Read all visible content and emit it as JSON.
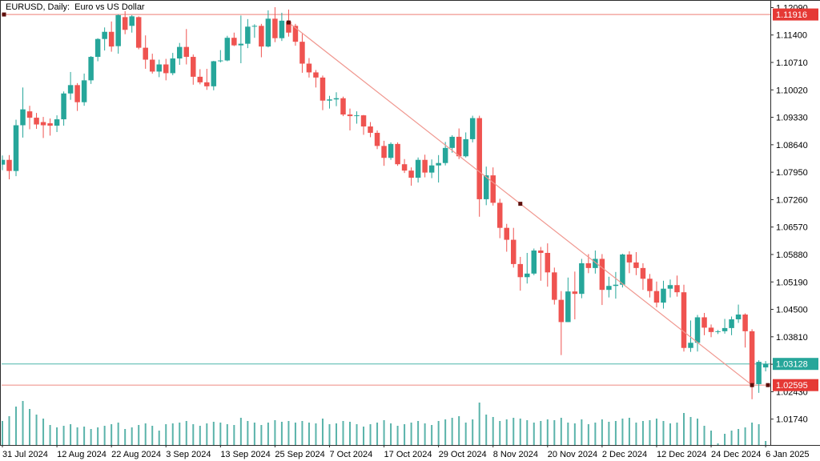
{
  "window": {
    "title": "EURUSD, Daily:  Euro vs US Dollar"
  },
  "colors": {
    "bull": "#26a69a",
    "bear": "#ef5350",
    "volume": "#5ab3aa",
    "object_line": "#f0978f",
    "object_marker": "#5d100c",
    "badge_red": "#e53935",
    "badge_teal": "#26a69a",
    "price_line_teal": "#4db6ac",
    "axis_line": "#2b2b2b",
    "axis_text": "#000000",
    "background": "#ffffff"
  },
  "chart_data": {
    "type": "candlestick",
    "title": "EURUSD, Daily:  Euro vs US Dollar",
    "symbol": "EURUSD",
    "timeframe": "Daily",
    "grid": false,
    "y_axis": {
      "side": "right",
      "visible_max": 1.1224,
      "visible_min": 1.01089,
      "tick_labels": [
        "1.12090",
        "1.11400",
        "1.10710",
        "1.10020",
        "1.09330",
        "1.08640",
        "1.07950",
        "1.07260",
        "1.06570",
        "1.05880",
        "1.05190",
        "1.04500",
        "1.03810",
        "1.03120",
        "1.02430",
        "1.01740"
      ]
    },
    "x_axis": {
      "side": "bottom",
      "tick_labels": [
        {
          "label": "31 Jul 2024",
          "bar": 0
        },
        {
          "label": "12 Aug 2024",
          "bar": 8
        },
        {
          "label": "22 Aug 2024",
          "bar": 16
        },
        {
          "label": "3 Sep 2024",
          "bar": 24
        },
        {
          "label": "13 Sep 2024",
          "bar": 32
        },
        {
          "label": "25 Sep 2024",
          "bar": 40
        },
        {
          "label": "7 Oct 2024",
          "bar": 48
        },
        {
          "label": "17 Oct 2024",
          "bar": 56
        },
        {
          "label": "29 Oct 2024",
          "bar": 64
        },
        {
          "label": "8 Nov 2024",
          "bar": 72
        },
        {
          "label": "20 Nov 2024",
          "bar": 80
        },
        {
          "label": "2 Dec 2024",
          "bar": 88
        },
        {
          "label": "12 Dec 2024",
          "bar": 96
        },
        {
          "label": "24 Dec 2024",
          "bar": 104
        },
        {
          "label": "6 Jan 2025",
          "bar": 112
        }
      ]
    },
    "candles_format": [
      "date",
      "open",
      "high",
      "low",
      "close",
      "volume"
    ],
    "candles": [
      [
        "31 Jul 2024",
        1.0814,
        1.0837,
        1.08,
        1.0826,
        30
      ],
      [
        "1 Aug 2024",
        1.0826,
        1.0838,
        1.0777,
        1.0798,
        36
      ],
      [
        "2 Aug 2024",
        1.0798,
        1.0927,
        1.0785,
        1.0913,
        48
      ],
      [
        "5 Aug 2024",
        1.0913,
        1.1008,
        1.0882,
        1.0953,
        55
      ],
      [
        "6 Aug 2024",
        1.0948,
        1.0962,
        1.0903,
        1.0932,
        45
      ],
      [
        "7 Aug 2024",
        1.0932,
        1.0944,
        1.0904,
        1.0915,
        38
      ],
      [
        "8 Aug 2024",
        1.0921,
        1.0934,
        1.0881,
        1.0913,
        33
      ],
      [
        "9 Aug 2024",
        1.0918,
        1.093,
        1.0887,
        1.0912,
        25
      ],
      [
        "12 Aug 2024",
        1.0912,
        1.0938,
        1.0896,
        1.0928,
        22
      ],
      [
        "13 Aug 2024",
        1.0928,
        1.0998,
        1.0912,
        1.0993,
        24
      ],
      [
        "14 Aug 2024",
        1.0993,
        1.1047,
        1.0977,
        1.1014,
        26
      ],
      [
        "15 Aug 2024",
        1.1014,
        1.1019,
        1.0949,
        1.0971,
        22
      ],
      [
        "16 Aug 2024",
        1.0971,
        1.1043,
        1.0962,
        1.1026,
        23
      ],
      [
        "19 Aug 2024",
        1.1026,
        1.1087,
        1.1017,
        1.1085,
        20
      ],
      [
        "20 Aug 2024",
        1.1085,
        1.1132,
        1.1074,
        1.113,
        22
      ],
      [
        "21 Aug 2024",
        1.113,
        1.1159,
        1.1101,
        1.1148,
        24
      ],
      [
        "22 Aug 2024",
        1.1148,
        1.1174,
        1.1098,
        1.1111,
        26
      ],
      [
        "23 Aug 2024",
        1.1112,
        1.1192,
        1.1093,
        1.119,
        28
      ],
      [
        "26 Aug 2024",
        1.1185,
        1.12,
        1.1142,
        1.1153,
        20
      ],
      [
        "27 Aug 2024",
        1.1163,
        1.119,
        1.1146,
        1.1187,
        22
      ],
      [
        "28 Aug 2024",
        1.1185,
        1.1187,
        1.1104,
        1.1108,
        25
      ],
      [
        "29 Aug 2024",
        1.1108,
        1.1139,
        1.1055,
        1.1078,
        27
      ],
      [
        "30 Aug 2024",
        1.1078,
        1.1093,
        1.1043,
        1.1048,
        24
      ],
      [
        "2 Sep 2024",
        1.1048,
        1.1078,
        1.1034,
        1.1066,
        18
      ],
      [
        "3 Sep 2024",
        1.1066,
        1.108,
        1.1026,
        1.1044,
        26
      ],
      [
        "4 Sep 2024",
        1.1044,
        1.1095,
        1.1039,
        1.1081,
        27
      ],
      [
        "5 Sep 2024",
        1.1081,
        1.112,
        1.1065,
        1.111,
        28
      ],
      [
        "6 Sep 2024",
        1.111,
        1.1155,
        1.1066,
        1.1085,
        30
      ],
      [
        "9 Sep 2024",
        1.1085,
        1.1091,
        1.1015,
        1.1035,
        26
      ],
      [
        "10 Sep 2024",
        1.1035,
        1.1054,
        1.1016,
        1.1021,
        24
      ],
      [
        "11 Sep 2024",
        1.1021,
        1.1055,
        1.1002,
        1.1011,
        27
      ],
      [
        "12 Sep 2024",
        1.1011,
        1.1075,
        1.1001,
        1.1074,
        29
      ],
      [
        "13 Sep 2024",
        1.1074,
        1.1102,
        1.1071,
        1.1076,
        28
      ],
      [
        "16 Sep 2024",
        1.1076,
        1.1138,
        1.1074,
        1.1133,
        26
      ],
      [
        "17 Sep 2024",
        1.1133,
        1.1146,
        1.1112,
        1.1114,
        25
      ],
      [
        "18 Sep 2024",
        1.1114,
        1.1189,
        1.1069,
        1.1118,
        34
      ],
      [
        "19 Sep 2024",
        1.1118,
        1.118,
        1.1107,
        1.1161,
        30
      ],
      [
        "20 Sep 2024",
        1.1161,
        1.1167,
        1.1133,
        1.1163,
        28
      ],
      [
        "23 Sep 2024",
        1.1163,
        1.1168,
        1.1084,
        1.1111,
        25
      ],
      [
        "24 Sep 2024",
        1.1111,
        1.1202,
        1.1109,
        1.1181,
        28
      ],
      [
        "25 Sep 2024",
        1.1181,
        1.121,
        1.1122,
        1.1132,
        31
      ],
      [
        "26 Sep 2024",
        1.1132,
        1.1196,
        1.1125,
        1.1176,
        29
      ],
      [
        "27 Sep 2024",
        1.1174,
        1.1204,
        1.1136,
        1.1146,
        30
      ],
      [
        "30 Sep 2024",
        1.1163,
        1.1168,
        1.1113,
        1.1123,
        28
      ],
      [
        "1 Oct 2024",
        1.1123,
        1.1143,
        1.1045,
        1.1068,
        30
      ],
      [
        "2 Oct 2024",
        1.1068,
        1.1082,
        1.1033,
        1.1046,
        28
      ],
      [
        "3 Oct 2024",
        1.1046,
        1.1052,
        1.1008,
        1.1033,
        27
      ],
      [
        "4 Oct 2024",
        1.1033,
        1.1038,
        1.0951,
        1.0975,
        33
      ],
      [
        "7 Oct 2024",
        1.0975,
        1.0987,
        1.0955,
        1.0978,
        26
      ],
      [
        "8 Oct 2024",
        1.0978,
        1.0996,
        1.0961,
        1.0981,
        27
      ],
      [
        "9 Oct 2024",
        1.0981,
        1.0985,
        1.0936,
        1.094,
        30
      ],
      [
        "10 Oct 2024",
        1.094,
        1.0955,
        1.09,
        1.0936,
        29
      ],
      [
        "11 Oct 2024",
        1.0936,
        1.0948,
        1.0917,
        1.0938,
        26
      ],
      [
        "14 Oct 2024",
        1.0938,
        1.0939,
        1.0889,
        1.091,
        23
      ],
      [
        "15 Oct 2024",
        1.091,
        1.0921,
        1.0883,
        1.0894,
        26
      ],
      [
        "16 Oct 2024",
        1.0894,
        1.09,
        1.0853,
        1.0861,
        28
      ],
      [
        "17 Oct 2024",
        1.0861,
        1.0874,
        1.0811,
        1.0831,
        31
      ],
      [
        "18 Oct 2024",
        1.0831,
        1.087,
        1.0826,
        1.0866,
        27
      ],
      [
        "21 Oct 2024",
        1.0866,
        1.087,
        1.0811,
        1.0815,
        24
      ],
      [
        "22 Oct 2024",
        1.0815,
        1.0828,
        1.0793,
        1.0799,
        26
      ],
      [
        "23 Oct 2024",
        1.0799,
        1.0807,
        1.0761,
        1.0781,
        28
      ],
      [
        "24 Oct 2024",
        1.0781,
        1.0832,
        1.0769,
        1.0826,
        30
      ],
      [
        "25 Oct 2024",
        1.0826,
        1.0839,
        1.0782,
        1.0794,
        27
      ],
      [
        "28 Oct 2024",
        1.0794,
        1.0827,
        1.078,
        1.0812,
        25
      ],
      [
        "29 Oct 2024",
        1.0812,
        1.0838,
        1.0769,
        1.0818,
        30
      ],
      [
        "30 Oct 2024",
        1.0818,
        1.0871,
        1.0812,
        1.0856,
        32
      ],
      [
        "31 Oct 2024",
        1.0856,
        1.0888,
        1.0844,
        1.0884,
        34
      ],
      [
        "1 Nov 2024",
        1.0884,
        1.0905,
        1.0828,
        1.0835,
        36
      ],
      [
        "4 Nov 2024",
        1.0835,
        1.0895,
        1.0832,
        1.0878,
        28
      ],
      [
        "5 Nov 2024",
        1.0878,
        1.0937,
        1.087,
        1.0931,
        32
      ],
      [
        "6 Nov 2024",
        1.0931,
        1.0937,
        1.0683,
        1.0727,
        53
      ],
      [
        "7 Nov 2024",
        1.0727,
        1.0809,
        1.0712,
        1.0787,
        38
      ],
      [
        "8 Nov 2024",
        1.0787,
        1.0807,
        1.0711,
        1.0718,
        35
      ],
      [
        "11 Nov 2024",
        1.0718,
        1.0728,
        1.0629,
        1.0655,
        30
      ],
      [
        "12 Nov 2024",
        1.0655,
        1.0665,
        1.0595,
        1.0625,
        32
      ],
      [
        "13 Nov 2024",
        1.0625,
        1.0655,
        1.0555,
        1.0564,
        34
      ],
      [
        "14 Nov 2024",
        1.0564,
        1.0582,
        1.0497,
        1.0531,
        33
      ],
      [
        "15 Nov 2024",
        1.0531,
        1.0592,
        1.0515,
        1.054,
        31
      ],
      [
        "18 Nov 2024",
        1.054,
        1.0603,
        1.0536,
        1.0598,
        28
      ],
      [
        "19 Nov 2024",
        1.0598,
        1.0607,
        1.0522,
        1.0592,
        30
      ],
      [
        "20 Nov 2024",
        1.0592,
        1.0616,
        1.0507,
        1.0543,
        32
      ],
      [
        "21 Nov 2024",
        1.0543,
        1.0555,
        1.0462,
        1.0474,
        31
      ],
      [
        "22 Nov 2024",
        1.0474,
        1.0496,
        1.0335,
        1.0418,
        34
      ],
      [
        "25 Nov 2024",
        1.0418,
        1.053,
        1.0418,
        1.0495,
        28
      ],
      [
        "26 Nov 2024",
        1.0495,
        1.0545,
        1.0425,
        1.0489,
        27
      ],
      [
        "27 Nov 2024",
        1.0489,
        1.0577,
        1.0478,
        1.0566,
        32
      ],
      [
        "28 Nov 2024",
        1.0566,
        1.0589,
        1.0541,
        1.0554,
        26
      ],
      [
        "29 Nov 2024",
        1.0554,
        1.0598,
        1.054,
        1.0577,
        28
      ],
      [
        "2 Dec 2024",
        1.0577,
        1.0589,
        1.0461,
        1.0499,
        32
      ],
      [
        "3 Dec 2024",
        1.0499,
        1.0532,
        1.048,
        1.0509,
        29
      ],
      [
        "4 Dec 2024",
        1.0509,
        1.0544,
        1.0477,
        1.0512,
        30
      ],
      [
        "5 Dec 2024",
        1.0512,
        1.059,
        1.0505,
        1.0588,
        33
      ],
      [
        "6 Dec 2024",
        1.0588,
        1.0596,
        1.0541,
        1.0568,
        34
      ],
      [
        "9 Dec 2024",
        1.0568,
        1.0594,
        1.0536,
        1.0554,
        28
      ],
      [
        "10 Dec 2024",
        1.0554,
        1.0566,
        1.0499,
        1.0527,
        30
      ],
      [
        "11 Dec 2024",
        1.0527,
        1.0539,
        1.048,
        1.0496,
        31
      ],
      [
        "12 Dec 2024",
        1.0496,
        1.052,
        1.0455,
        1.0467,
        33
      ],
      [
        "13 Dec 2024",
        1.0467,
        1.0522,
        1.0452,
        1.0502,
        30
      ],
      [
        "16 Dec 2024",
        1.0502,
        1.0525,
        1.048,
        1.0511,
        27
      ],
      [
        "17 Dec 2024",
        1.0511,
        1.0535,
        1.0482,
        1.0493,
        28
      ],
      [
        "18 Dec 2024",
        1.0493,
        1.0512,
        1.0344,
        1.0353,
        40
      ],
      [
        "19 Dec 2024",
        1.0353,
        1.0422,
        1.0343,
        1.0366,
        35
      ],
      [
        "20 Dec 2024",
        1.0366,
        1.0436,
        1.0344,
        1.043,
        33
      ],
      [
        "23 Dec 2024",
        1.043,
        1.0441,
        1.0385,
        1.0404,
        24
      ],
      [
        "24 Dec 2024",
        1.0404,
        1.0412,
        1.038,
        1.0393,
        18
      ],
      [
        "25 Dec 2024",
        1.0393,
        1.0398,
        1.0388,
        1.0395,
        2
      ],
      [
        "26 Dec 2024",
        1.0395,
        1.0426,
        1.0389,
        1.0403,
        14
      ],
      [
        "27 Dec 2024",
        1.0403,
        1.0432,
        1.0385,
        1.0425,
        18
      ],
      [
        "30 Dec 2024",
        1.0425,
        1.0462,
        1.0416,
        1.0437,
        20
      ],
      [
        "31 Dec 2024",
        1.0437,
        1.044,
        1.0354,
        1.0395,
        22
      ],
      [
        "2 Jan 2025",
        1.0395,
        1.04,
        1.0224,
        1.0262,
        28
      ],
      [
        "3 Jan 2025",
        1.0262,
        1.0322,
        1.024,
        1.0318,
        26
      ],
      [
        "6 Jan 2025",
        1.0304,
        1.032,
        1.0294,
        1.0313,
        5
      ]
    ],
    "overlays": {
      "horizontal_lines": [
        {
          "name": "resistance-line",
          "price": 1.11916,
          "label": "1.11916",
          "marker_at": "left"
        },
        {
          "name": "support-line",
          "price": 1.02595,
          "label": "1.02595",
          "marker_at": "right"
        }
      ],
      "trendline": {
        "from_bar": 42,
        "from_price": 1.11715,
        "to_bar": 110,
        "to_price": 1.02595,
        "selected": true
      },
      "current_price_line": {
        "price": 1.03128,
        "label": "1.03128"
      }
    },
    "volume_pane": {
      "visible": true,
      "position": "bottom"
    }
  }
}
